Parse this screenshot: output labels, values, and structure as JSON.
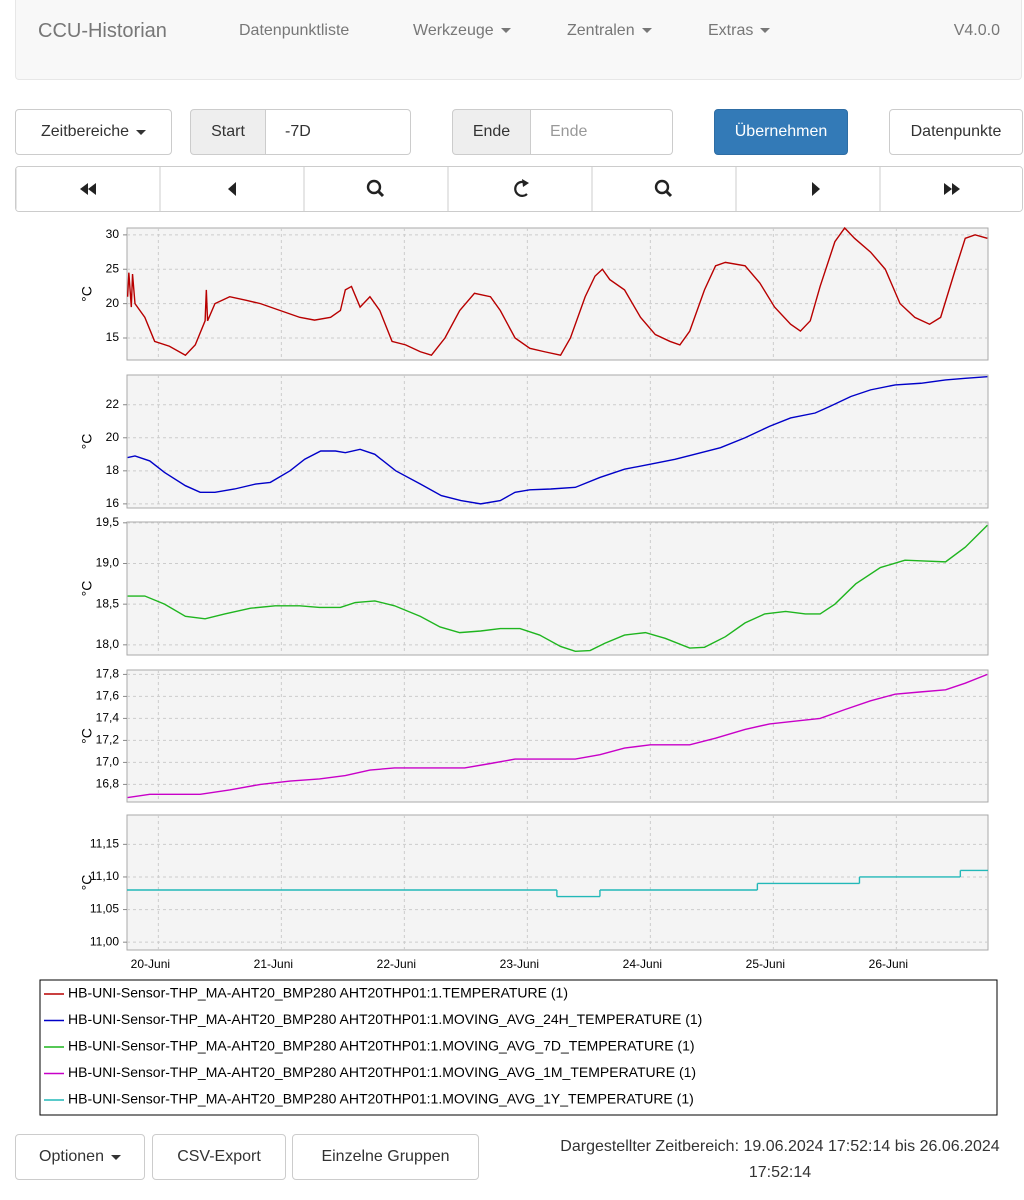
{
  "navbar": {
    "brand": "CCU-Historian",
    "items": [
      "Datenpunktliste",
      "Werkzeuge",
      "Zentralen",
      "Extras"
    ],
    "version": "V4.0.0"
  },
  "toolbar": {
    "ranges": "Zeitbereiche",
    "start_label": "Start",
    "start_value": "-7D",
    "end_label": "Ende",
    "end_placeholder": "Ende",
    "apply": "Übernehmen",
    "datapoints": "Datenpunkte"
  },
  "chart_data": [
    {
      "type": "line",
      "ylabel": "°C",
      "xlim": [
        19.745,
        26.745
      ],
      "ylim": [
        11.8,
        31
      ],
      "yticks": [
        15,
        20,
        25,
        30
      ],
      "grid": true,
      "x": [
        19.75,
        19.76,
        19.78,
        19.79,
        19.81,
        19.89,
        19.97,
        20.09,
        20.22,
        20.3,
        20.38,
        20.39,
        20.4,
        20.46,
        20.58,
        20.71,
        20.83,
        20.99,
        21.15,
        21.27,
        21.4,
        21.48,
        21.52,
        21.57,
        21.64,
        21.72,
        21.8,
        21.9,
        22.01,
        22.13,
        22.22,
        22.33,
        22.45,
        22.57,
        22.7,
        22.78,
        22.9,
        23.02,
        23.14,
        23.27,
        23.35,
        23.47,
        23.55,
        23.61,
        23.67,
        23.79,
        23.92,
        24.04,
        24.16,
        24.24,
        24.32,
        24.44,
        24.53,
        24.61,
        24.77,
        24.89,
        25.01,
        25.14,
        25.22,
        25.3,
        25.38,
        25.5,
        25.58,
        25.66,
        25.79,
        25.91,
        26.03,
        26.15,
        26.27,
        26.36,
        26.48,
        26.56,
        26.64,
        26.74
      ],
      "series": [
        {
          "name": "HB-UNI-Sensor-THP_MA-AHT20_BMP280 AHT20THP01:1.TEMPERATURE (1)",
          "color": "#b80000",
          "values": [
            21,
            24.5,
            19.5,
            24.3,
            20,
            18,
            14.5,
            13.8,
            12.5,
            14,
            17.5,
            22,
            17.5,
            20,
            21,
            20.5,
            20,
            19,
            18,
            17.6,
            18,
            19,
            22,
            22.5,
            19.5,
            21,
            19,
            14.5,
            14,
            13,
            12.5,
            15,
            19,
            21.5,
            21,
            19,
            15,
            13.5,
            13,
            12.5,
            15,
            21,
            24,
            25,
            23.5,
            22,
            18,
            15.5,
            14.5,
            14,
            16,
            22,
            25.5,
            26,
            25.5,
            23,
            19.5,
            17,
            16,
            17.5,
            22.5,
            29,
            31,
            29.5,
            27.5,
            25,
            20,
            18,
            17,
            18,
            25,
            29.5,
            30,
            29.5
          ]
        }
      ]
    },
    {
      "type": "line",
      "ylabel": "°C",
      "xlim": [
        19.745,
        26.745
      ],
      "ylim": [
        15.75,
        23.8
      ],
      "yticks": [
        16,
        18,
        20,
        22
      ],
      "grid": true,
      "x": [
        19.75,
        19.81,
        19.93,
        20.05,
        20.22,
        20.34,
        20.46,
        20.62,
        20.79,
        20.91,
        21.07,
        21.19,
        21.32,
        21.44,
        21.52,
        21.64,
        21.76,
        21.93,
        22.13,
        22.3,
        22.46,
        22.62,
        22.78,
        22.9,
        23.02,
        23.19,
        23.39,
        23.59,
        23.79,
        24.0,
        24.2,
        24.36,
        24.57,
        24.77,
        24.97,
        25.14,
        25.34,
        25.46,
        25.63,
        25.79,
        25.99,
        26.2,
        26.4,
        26.56,
        26.74
      ],
      "series": [
        {
          "name": "HB-UNI-Sensor-THP_MA-AHT20_BMP280 AHT20THP01:1.MOVING_AVG_24H_TEMPERATURE (1)",
          "color": "#0000c8",
          "values": [
            18.8,
            18.9,
            18.6,
            17.9,
            17.1,
            16.7,
            16.7,
            16.9,
            17.2,
            17.3,
            18.0,
            18.7,
            19.2,
            19.2,
            19.1,
            19.3,
            19.0,
            18.0,
            17.2,
            16.5,
            16.2,
            16.0,
            16.2,
            16.7,
            16.85,
            16.9,
            17.0,
            17.6,
            18.1,
            18.4,
            18.7,
            19.0,
            19.4,
            20.0,
            20.7,
            21.2,
            21.5,
            21.9,
            22.5,
            22.9,
            23.2,
            23.3,
            23.5,
            23.6,
            23.7
          ]
        }
      ]
    },
    {
      "type": "line",
      "ylabel": "°C",
      "xlim": [
        19.745,
        26.745
      ],
      "ylim": [
        17.875,
        19.51
      ],
      "yticks": [
        {
          "value": 18,
          "label": "18,0"
        },
        {
          "value": 18.5,
          "label": "18,5"
        },
        {
          "value": 19,
          "label": "19,0"
        },
        {
          "value": 19.5,
          "label": "19,5"
        }
      ],
      "grid": true,
      "x": [
        19.75,
        19.89,
        20.05,
        20.22,
        20.38,
        20.54,
        20.75,
        20.95,
        21.15,
        21.31,
        21.48,
        21.6,
        21.76,
        21.92,
        22.13,
        22.29,
        22.45,
        22.62,
        22.78,
        22.94,
        23.1,
        23.27,
        23.39,
        23.51,
        23.63,
        23.79,
        23.96,
        24.12,
        24.32,
        24.44,
        24.61,
        24.77,
        24.93,
        25.1,
        25.26,
        25.38,
        25.5,
        25.67,
        25.87,
        26.07,
        26.24,
        26.4,
        26.56,
        26.74
      ],
      "series": [
        {
          "name": "HB-UNI-Sensor-THP_MA-AHT20_BMP280 AHT20THP01:1.MOVING_AVG_7D_TEMPERATURE (1)",
          "color": "#1fb51f",
          "values": [
            18.6,
            18.6,
            18.5,
            18.35,
            18.32,
            18.38,
            18.45,
            18.48,
            18.48,
            18.46,
            18.46,
            18.52,
            18.54,
            18.48,
            18.35,
            18.22,
            18.15,
            18.17,
            18.2,
            18.2,
            18.12,
            17.98,
            17.92,
            17.93,
            18.02,
            18.12,
            18.15,
            18.08,
            17.96,
            17.97,
            18.1,
            18.27,
            18.38,
            18.41,
            18.38,
            18.38,
            18.5,
            18.75,
            18.95,
            19.04,
            19.03,
            19.02,
            19.2,
            19.47
          ]
        }
      ]
    },
    {
      "type": "line",
      "ylabel": "°C",
      "xlim": [
        19.745,
        26.745
      ],
      "ylim": [
        16.64,
        17.84
      ],
      "yticks": [
        {
          "value": 16.8,
          "label": "16,8"
        },
        {
          "value": 17,
          "label": "17,0"
        },
        {
          "value": 17.2,
          "label": "17,2"
        },
        {
          "value": 17.4,
          "label": "17,4"
        },
        {
          "value": 17.6,
          "label": "17,6"
        },
        {
          "value": 17.8,
          "label": "17,8"
        }
      ],
      "grid": true,
      "x": [
        19.75,
        19.93,
        20.18,
        20.34,
        20.58,
        20.83,
        21.07,
        21.31,
        21.52,
        21.72,
        21.92,
        22.21,
        22.49,
        22.7,
        22.9,
        23.14,
        23.39,
        23.59,
        23.79,
        24.0,
        24.32,
        24.53,
        24.77,
        24.97,
        25.22,
        25.38,
        25.58,
        25.79,
        25.99,
        26.19,
        26.4,
        26.56,
        26.74
      ],
      "series": [
        {
          "name": "HB-UNI-Sensor-THP_MA-AHT20_BMP280 AHT20THP01:1.MOVING_AVG_1M_TEMPERATURE (1)",
          "color": "#c800c8",
          "values": [
            16.68,
            16.71,
            16.71,
            16.71,
            16.75,
            16.8,
            16.83,
            16.85,
            16.88,
            16.93,
            16.95,
            16.95,
            16.95,
            16.99,
            17.03,
            17.03,
            17.03,
            17.07,
            17.13,
            17.16,
            17.16,
            17.22,
            17.3,
            17.35,
            17.38,
            17.4,
            17.48,
            17.56,
            17.62,
            17.64,
            17.66,
            17.72,
            17.8
          ]
        }
      ]
    },
    {
      "type": "step",
      "ylabel": "°C",
      "xlim": [
        19.745,
        26.745
      ],
      "ylim": [
        10.988,
        11.195
      ],
      "yticks": [
        {
          "value": 11,
          "label": "11,00"
        },
        {
          "value": 11.05,
          "label": "11,05"
        },
        {
          "value": 11.1,
          "label": "11,10"
        },
        {
          "value": 11.15,
          "label": "11,15"
        }
      ],
      "grid": true,
      "xticks": [
        {
          "value": 20,
          "label": "20-Juni"
        },
        {
          "value": 21,
          "label": "21-Juni"
        },
        {
          "value": 22,
          "label": "22-Juni"
        },
        {
          "value": 23,
          "label": "23-Juni"
        },
        {
          "value": 24,
          "label": "24-Juni"
        },
        {
          "value": 25,
          "label": "25-Juni"
        },
        {
          "value": 26,
          "label": "26-Juni"
        }
      ],
      "x": [
        19.745,
        23.24,
        23.59,
        24.87,
        25.7,
        26.52
      ],
      "series": [
        {
          "name": "HB-UNI-Sensor-THP_MA-AHT20_BMP280 AHT20THP01:1.MOVING_AVG_1Y_TEMPERATURE (1)",
          "color": "#22b8b8",
          "values": [
            11.08,
            11.07,
            11.08,
            11.09,
            11.1,
            11.11
          ]
        }
      ]
    }
  ],
  "footer": {
    "options": "Optionen",
    "csv": "CSV-Export",
    "groups": "Einzelne Gruppen",
    "range": "Dargestellter Zeitbereich: 19.06.2024 17:52:14 bis 26.06.2024 17:52:14"
  }
}
